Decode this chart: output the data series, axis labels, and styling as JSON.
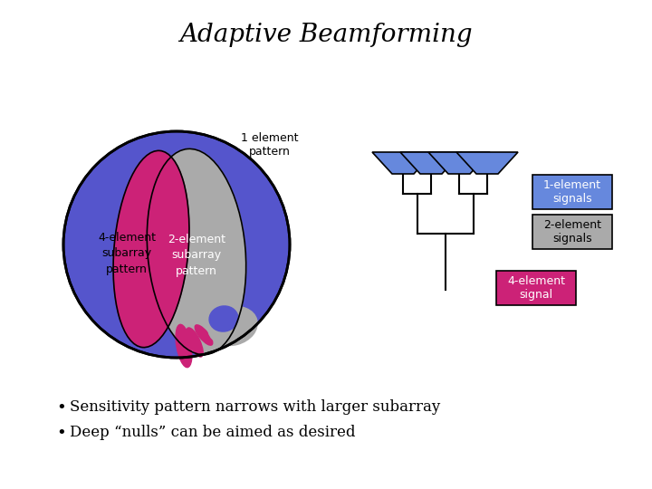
{
  "title": "Adaptive Beamforming",
  "title_fontsize": 20,
  "background_color": "#ffffff",
  "bullet_points": [
    "Sensitivity pattern narrows with larger subarray",
    "Deep “nulls” can be aimed as desired"
  ],
  "bullet_fontsize": 12,
  "colors": {
    "blue": "#5555cc",
    "gray": "#aaaaaa",
    "magenta": "#cc2277",
    "black": "#000000",
    "white": "#ffffff",
    "antenna_blue": "#6688dd"
  },
  "labels": {
    "four_element": "4-element\nsubarray\npattern",
    "two_element": "2-element\nsubarray\npattern",
    "one_element": "1 element\npattern",
    "signal_1": "1-element\nsignals",
    "signal_2": "2-element\nsignals",
    "signal_4": "4-element\nsignal"
  },
  "label_fontsize": 9,
  "fig_width": 7.2,
  "fig_height": 5.4,
  "dpi": 100
}
